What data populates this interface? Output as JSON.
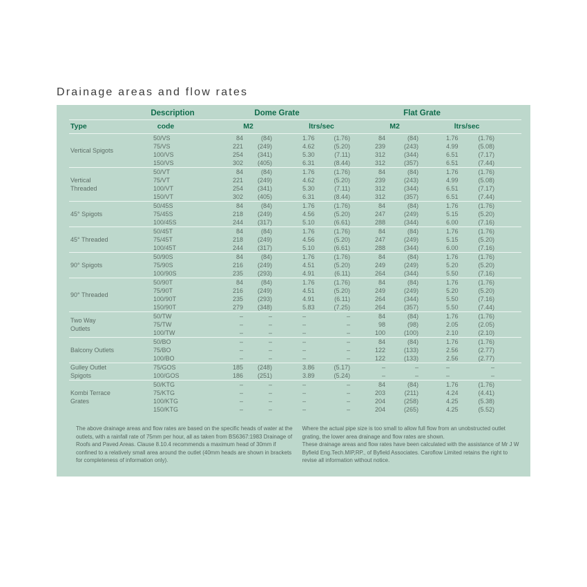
{
  "title": "Drainage areas and flow rates",
  "header": {
    "description": "Description",
    "dome_grate": "Dome Grate",
    "flat_grate": "Flat Grate",
    "type": "Type",
    "code": "code",
    "dome_m2": "M2",
    "dome_ltrs": "ltrs/sec",
    "flat_m2": "M2",
    "flat_ltrs": "ltrs/sec"
  },
  "groups": [
    {
      "type": "Vertical Spigots",
      "rows": [
        [
          "50/VS",
          "84",
          "(84)",
          "1.76",
          "(1.76)",
          "84",
          "(84)",
          "1.76",
          "(1.76)"
        ],
        [
          "75/VS",
          "221",
          "(249)",
          "4.62",
          "(5.20)",
          "239",
          "(243)",
          "4.99",
          "(5.08)"
        ],
        [
          "100/VS",
          "254",
          "(341)",
          "5.30",
          "(7.11)",
          "312",
          "(344)",
          "6.51",
          "(7.17)"
        ],
        [
          "150/VS",
          "302",
          "(405)",
          "6.31",
          "(8.44)",
          "312",
          "(357)",
          "6.51",
          "(7.44)"
        ]
      ]
    },
    {
      "type": "Vertical Threaded",
      "rows": [
        [
          "50/VT",
          "84",
          "(84)",
          "1.76",
          "(1.76)",
          "84",
          "(84)",
          "1.76",
          "(1.76)"
        ],
        [
          "75/VT",
          "221",
          "(249)",
          "4.62",
          "(5.20)",
          "239",
          "(243)",
          "4.99",
          "(5.08)"
        ],
        [
          "100/VT",
          "254",
          "(341)",
          "5.30",
          "(7.11)",
          "312",
          "(344)",
          "6.51",
          "(7.17)"
        ],
        [
          "150/VT",
          "302",
          "(405)",
          "6.31",
          "(8.44)",
          "312",
          "(357)",
          "6.51",
          "(7.44)"
        ]
      ]
    },
    {
      "type": "45° Spigots",
      "rows": [
        [
          "50/45S",
          "84",
          "(84)",
          "1.76",
          "(1.76)",
          "84",
          "(84)",
          "1.76",
          "(1.76)"
        ],
        [
          "75/45S",
          "218",
          "(249)",
          "4.56",
          "(5.20)",
          "247",
          "(249)",
          "5.15",
          "(5.20)"
        ],
        [
          "100/45S",
          "244",
          "(317)",
          "5.10",
          "(6.61)",
          "288",
          "(344)",
          "6.00",
          "(7.16)"
        ]
      ]
    },
    {
      "type": "45° Threaded",
      "rows": [
        [
          "50/45T",
          "84",
          "(84)",
          "1.76",
          "(1.76)",
          "84",
          "(84)",
          "1.76",
          "(1.76)"
        ],
        [
          "75/45T",
          "218",
          "(249)",
          "4.56",
          "(5.20)",
          "247",
          "(249)",
          "5.15",
          "(5.20)"
        ],
        [
          "100/45T",
          "244",
          "(317)",
          "5.10",
          "(6.61)",
          "288",
          "(344)",
          "6.00",
          "(7.16)"
        ]
      ]
    },
    {
      "type": "90° Spigots",
      "rows": [
        [
          "50/90S",
          "84",
          "(84)",
          "1.76",
          "(1.76)",
          "84",
          "(84)",
          "1.76",
          "(1.76)"
        ],
        [
          "75/90S",
          "216",
          "(249)",
          "4.51",
          "(5.20)",
          "249",
          "(249)",
          "5.20",
          "(5.20)"
        ],
        [
          "100/90S",
          "235",
          "(293)",
          "4.91",
          "(6.11)",
          "264",
          "(344)",
          "5.50",
          "(7.16)"
        ]
      ]
    },
    {
      "type": "90° Threaded",
      "rows": [
        [
          "50/90T",
          "84",
          "(84)",
          "1.76",
          "(1.76)",
          "84",
          "(84)",
          "1.76",
          "(1.76)"
        ],
        [
          "75/90T",
          "216",
          "(249)",
          "4.51",
          "(5.20)",
          "249",
          "(249)",
          "5.20",
          "(5.20)"
        ],
        [
          "100/90T",
          "235",
          "(293)",
          "4.91",
          "(6.11)",
          "264",
          "(344)",
          "5.50",
          "(7.16)"
        ],
        [
          "150/90T",
          "279",
          "(348)",
          "5.83",
          "(7.25)",
          "264",
          "(357)",
          "5.50",
          "(7.44)"
        ]
      ]
    },
    {
      "type": "Two Way Outlets",
      "rows": [
        [
          "50/TW",
          "–",
          "–",
          "–",
          "–",
          "84",
          "(84)",
          "1.76",
          "(1.76)"
        ],
        [
          "75/TW",
          "–",
          "–",
          "–",
          "–",
          "98",
          "(98)",
          "2.05",
          "(2.05)"
        ],
        [
          "100/TW",
          "–",
          "–",
          "–",
          "–",
          "100",
          "(100)",
          "2.10",
          "(2.10)"
        ]
      ]
    },
    {
      "type": "Balcony Outlets",
      "rows": [
        [
          "50/BO",
          "–",
          "–",
          "–",
          "–",
          "84",
          "(84)",
          "1.76",
          "(1.76)"
        ],
        [
          "75/BO",
          "–",
          "–",
          "–",
          "–",
          "122",
          "(133)",
          "2.56",
          "(2.77)"
        ],
        [
          "100/BO",
          "–",
          "–",
          "–",
          "–",
          "122",
          "(133)",
          "2.56",
          "(2.77)"
        ]
      ]
    },
    {
      "type": "Gulley Outlet Spigots",
      "rows": [
        [
          "75/GOS",
          "185",
          "(248)",
          "3.86",
          "(5.17)",
          "–",
          "–",
          "–",
          "–"
        ],
        [
          "100/GOS",
          "186",
          "(251)",
          "3.89",
          "(5.24)",
          "–",
          "–",
          "–",
          "–"
        ]
      ]
    },
    {
      "type": "Kombi Terrace Grates",
      "rows": [
        [
          "50/KTG",
          "–",
          "–",
          "–",
          "–",
          "84",
          "(84)",
          "1.76",
          "(1.76)"
        ],
        [
          "75/KTG",
          "–",
          "–",
          "–",
          "–",
          "203",
          "(211)",
          "4.24",
          "(4.41)"
        ],
        [
          "100/KTG",
          "–",
          "–",
          "–",
          "–",
          "204",
          "(258)",
          "4.25",
          "(5.38)"
        ],
        [
          "150/KTG",
          "–",
          "–",
          "–",
          "–",
          "204",
          "(265)",
          "4.25",
          "(5.52)"
        ]
      ]
    }
  ],
  "notes": {
    "left": "The above  drainage areas and flow rates are based on the specific heads of water at the outlets, with a rainfall rate of 75mm per hour, all as taken from BS6367:1983 Drainage of Roofs and Paved Areas. Clause 8.10.4 recommends a maximum head of 30mm if confined to a relatively small area around the outlet (40mm heads are shown in brackets for completeness of information only).",
    "right_1": "Where the actual pipe size is too small to allow full flow from an unobstructed outlet grating, the lower area drainage and flow rates are shown.",
    "right_2": "These drainage areas and flow rates have been calculated with the assistance of Mr J W Byfield Eng.Tech.MIP,RP., of Byfield Associates. Caroflow Limited retains the right to revise all information without notice."
  },
  "colors": {
    "panel": "#bdd8cc",
    "heading": "#0f6b4b",
    "text": "#5d6d66"
  }
}
